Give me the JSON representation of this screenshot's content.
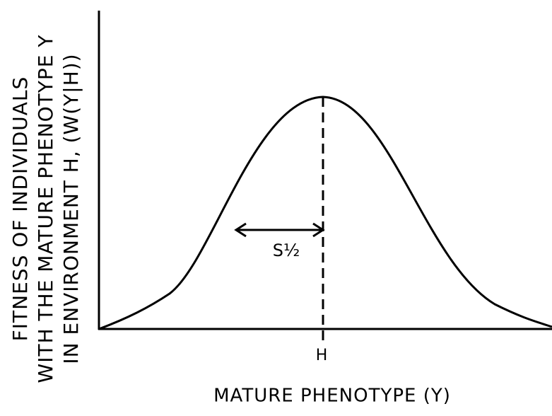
{
  "y_axis_label": [
    "FITNESS OF INDIVIDUALS",
    "WITH THE MATURE PHENOTYPE Y",
    "IN ENVIRONMENT H, (W(Y|H))"
  ],
  "x_axis_label": "MATURE PHENOTYPE (Y)",
  "x_tick": "H",
  "width_annotation": "S½"
}
